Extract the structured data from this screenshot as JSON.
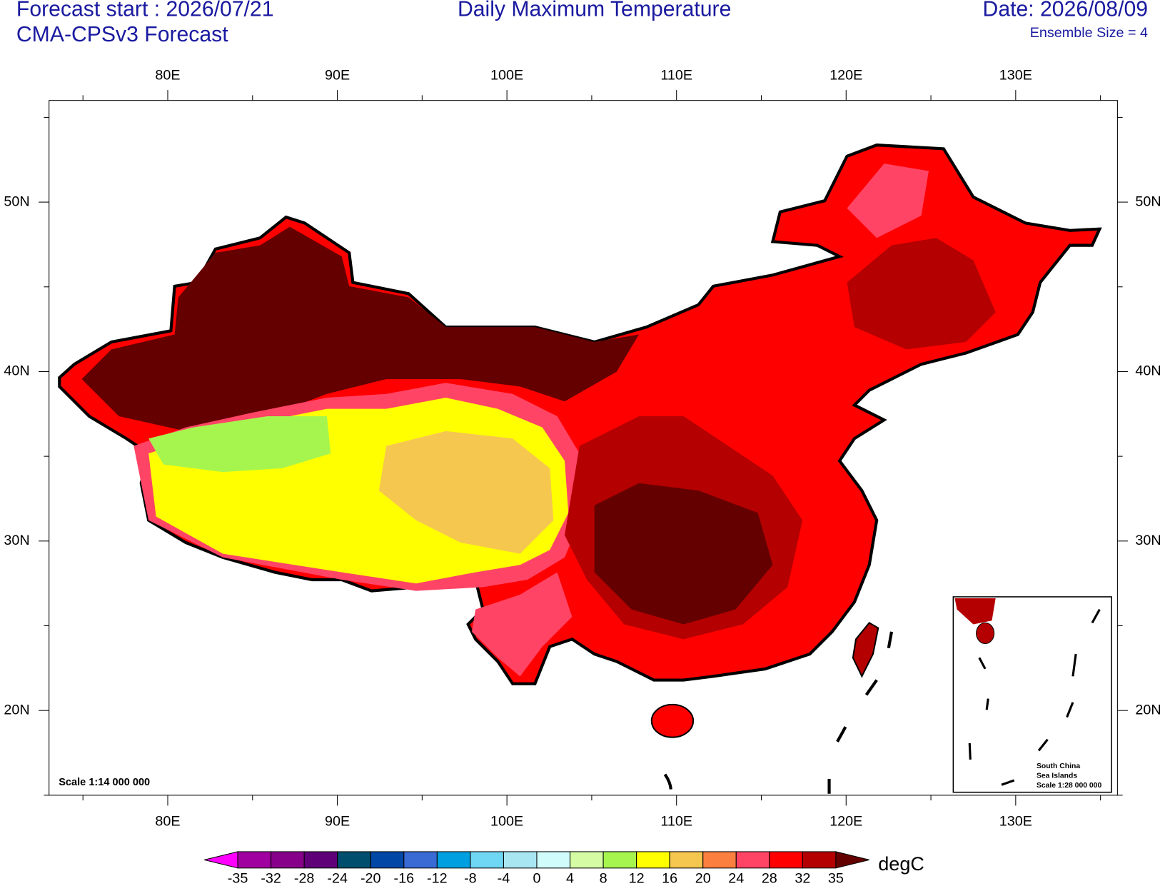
{
  "header": {
    "forecast_start": "Forecast start : 2026/07/21",
    "model": "CMA-CPSv3 Forecast",
    "title": "Daily Maximum Temperature",
    "date": "Date: 2026/08/09",
    "ensemble": "Ensemble Size = 4"
  },
  "map": {
    "lonlim": [
      73,
      136
    ],
    "latlim": [
      15,
      56
    ],
    "lon_ticks": [
      {
        "value": 80,
        "label": "80E"
      },
      {
        "value": 90,
        "label": "90E"
      },
      {
        "value": 100,
        "label": "100E"
      },
      {
        "value": 110,
        "label": "110E"
      },
      {
        "value": 120,
        "label": "120E"
      },
      {
        "value": 130,
        "label": "130E"
      }
    ],
    "lon_minor_ticks": [
      75,
      85,
      95,
      105,
      115,
      125,
      135
    ],
    "lat_ticks": [
      {
        "value": 20,
        "label": "20N"
      },
      {
        "value": 30,
        "label": "30N"
      },
      {
        "value": 40,
        "label": "40N"
      },
      {
        "value": 50,
        "label": "50N"
      }
    ],
    "lat_minor_ticks": [
      15,
      25,
      35,
      45,
      55
    ],
    "scale_note": "Scale 1:14 000 000",
    "inset": [
      "South China",
      "Sea Islands",
      "Scale 1:28 000 000"
    ]
  },
  "colorbar": {
    "unit": "degC",
    "levels": [
      -35,
      -32,
      -28,
      -24,
      -20,
      -16,
      -12,
      -8,
      -4,
      0,
      4,
      8,
      12,
      16,
      20,
      24,
      28,
      32,
      35
    ],
    "colors": [
      "#ff00ff",
      "#a0009f",
      "#87008a",
      "#5f0078",
      "#004e6e",
      "#0047a6",
      "#3a6bd4",
      "#00a0e0",
      "#6fd6f4",
      "#a8e6f2",
      "#d0fcfc",
      "#d5fca4",
      "#a6f54e",
      "#ffff00",
      "#f6c74f",
      "#fb7f3f",
      "#ff4466",
      "#ff0000",
      "#b40000",
      "#650000"
    ]
  }
}
